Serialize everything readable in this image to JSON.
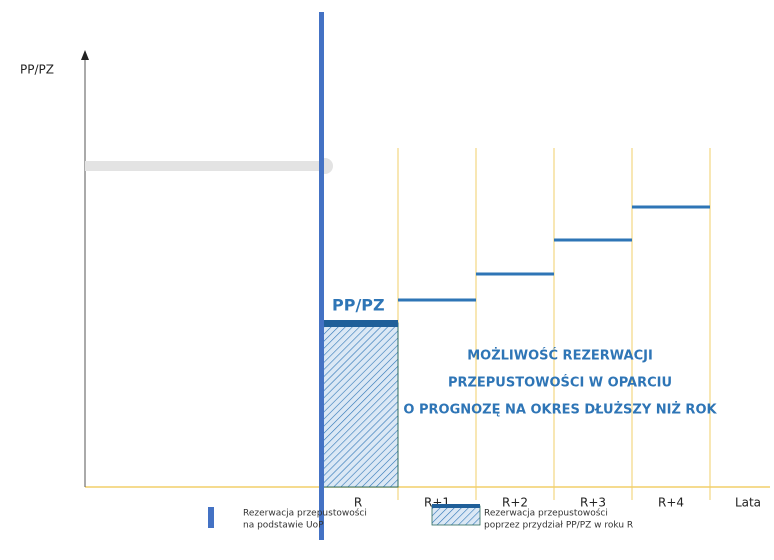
{
  "y_axis_label": "PP/PZ",
  "bar_label": "PP/PZ",
  "annotation": [
    "MOŻLIWOŚĆ REZERWACJI",
    "PRZEPUSTOWOŚCI W OPARCIU",
    "O PROGNOZĘ NA OKRES DŁUŻSZY NIŻ ROK"
  ],
  "x_labels": [
    "R",
    "R+1",
    "R+2",
    "R+3",
    "R+4"
  ],
  "x_axis_label": "Lata",
  "legend": [
    {
      "lines": [
        "Rezerwacja przepustowości",
        "na podstawie UoP"
      ]
    },
    {
      "lines": [
        "Rezerwacja przepustowości",
        "poprzez przydział PP/PZ w roku R"
      ]
    }
  ]
}
